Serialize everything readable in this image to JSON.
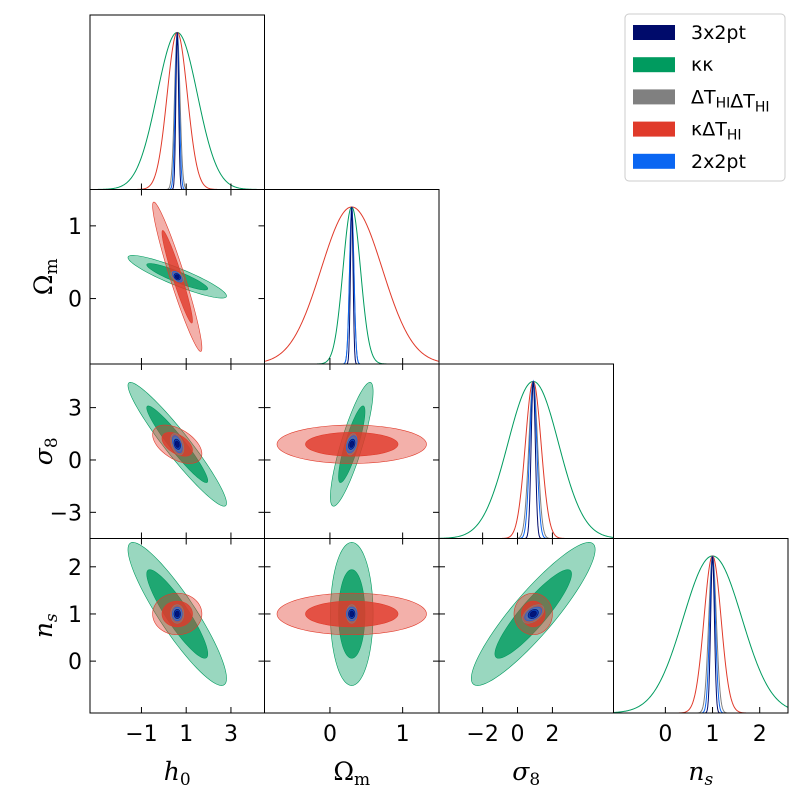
{
  "chart_data": {
    "type": "corner",
    "parameters": [
      {
        "id": "h0",
        "axis_label": "h0",
        "axis_label_display": "h₀",
        "range": [
          -3.3,
          4.5
        ],
        "ticks": [
          -1,
          1,
          3
        ],
        "tick_labels": [
          "−1",
          "1",
          "3"
        ]
      },
      {
        "id": "Omega_m",
        "axis_label": "Omega_m",
        "axis_label_display": "Ωm",
        "range": [
          -0.9,
          1.5
        ],
        "ticks": [
          0,
          1
        ],
        "tick_labels": [
          "0",
          "1"
        ]
      },
      {
        "id": "sigma_8",
        "axis_label": "sigma_8",
        "axis_label_display": "σ₈",
        "range": [
          -4.5,
          5.5
        ],
        "ticks": [
          -3,
          0,
          3
        ],
        "tick_labels": [
          "−3",
          "0",
          "3"
        ]
      },
      {
        "id": "n_s",
        "axis_label": "n_s",
        "axis_label_display": "nₛ",
        "range": [
          -1.1,
          2.6
        ],
        "ticks": [
          0,
          1,
          2
        ],
        "tick_labels": [
          "0",
          "1",
          "2"
        ]
      }
    ],
    "x_tick_overrides": {
      "2": {
        "ticks": [
          -2,
          0,
          2
        ],
        "tick_labels": [
          "−2",
          "0",
          "2"
        ]
      }
    },
    "series": [
      {
        "name": "3x2pt",
        "legend_label": "3x2pt",
        "color": "#000b6b",
        "mean": [
          0.6,
          0.3,
          0.9,
          1.0
        ],
        "sigma": [
          0.06,
          0.018,
          0.12,
          0.04
        ],
        "corr": {
          "1,0": -0.3,
          "2,0": -0.3,
          "2,1": 0.3,
          "3,0": 0.0,
          "3,1": 0.0,
          "3,2": 0.3
        }
      },
      {
        "name": "kk",
        "legend_label": "κκ",
        "color": "#009b5f",
        "mean": [
          0.6,
          0.3,
          0.9,
          1.0
        ],
        "sigma": [
          0.9,
          0.12,
          1.45,
          0.62
        ],
        "corr": {
          "1,0": -0.9,
          "2,0": -0.95,
          "2,1": 0.85,
          "3,0": -0.9,
          "3,1": 0.0,
          "3,2": 0.9
        }
      },
      {
        "name": "dTdT",
        "legend_label": "ΔT_HIΔT_HI",
        "color": "#808080",
        "mean": [
          0.6,
          0.3,
          0.9,
          1.0
        ],
        "sigma": [
          0.12,
          0.03,
          0.25,
          0.08
        ],
        "corr": {
          "1,0": -0.5,
          "2,0": -0.4,
          "2,1": 0.3,
          "3,0": 0.0,
          "3,1": 0.0,
          "3,2": 0.5
        }
      },
      {
        "name": "kdT",
        "legend_label": "κΔT_HI",
        "color": "#e03a2a",
        "mean": [
          0.6,
          0.3,
          0.9,
          1.0
        ],
        "sigma": [
          0.45,
          0.42,
          0.45,
          0.18
        ],
        "corr": {
          "1,0": -0.95,
          "2,0": -0.5,
          "2,1": 0.0,
          "3,0": 0.0,
          "3,1": 0.0,
          "3,2": 0.0
        }
      },
      {
        "name": "2x2pt",
        "legend_label": "2x2pt",
        "color": "#0a66f2",
        "mean": [
          0.6,
          0.3,
          0.9,
          1.0
        ],
        "sigma": [
          0.09,
          0.03,
          0.2,
          0.06
        ],
        "corr": {
          "1,0": -0.6,
          "2,0": -0.5,
          "2,1": 0.4,
          "3,0": 0.0,
          "3,1": 0.0,
          "3,2": 0.5
        }
      }
    ],
    "legend_position": "top-right",
    "contour_levels": [
      "68%",
      "95%"
    ],
    "grid": false
  }
}
